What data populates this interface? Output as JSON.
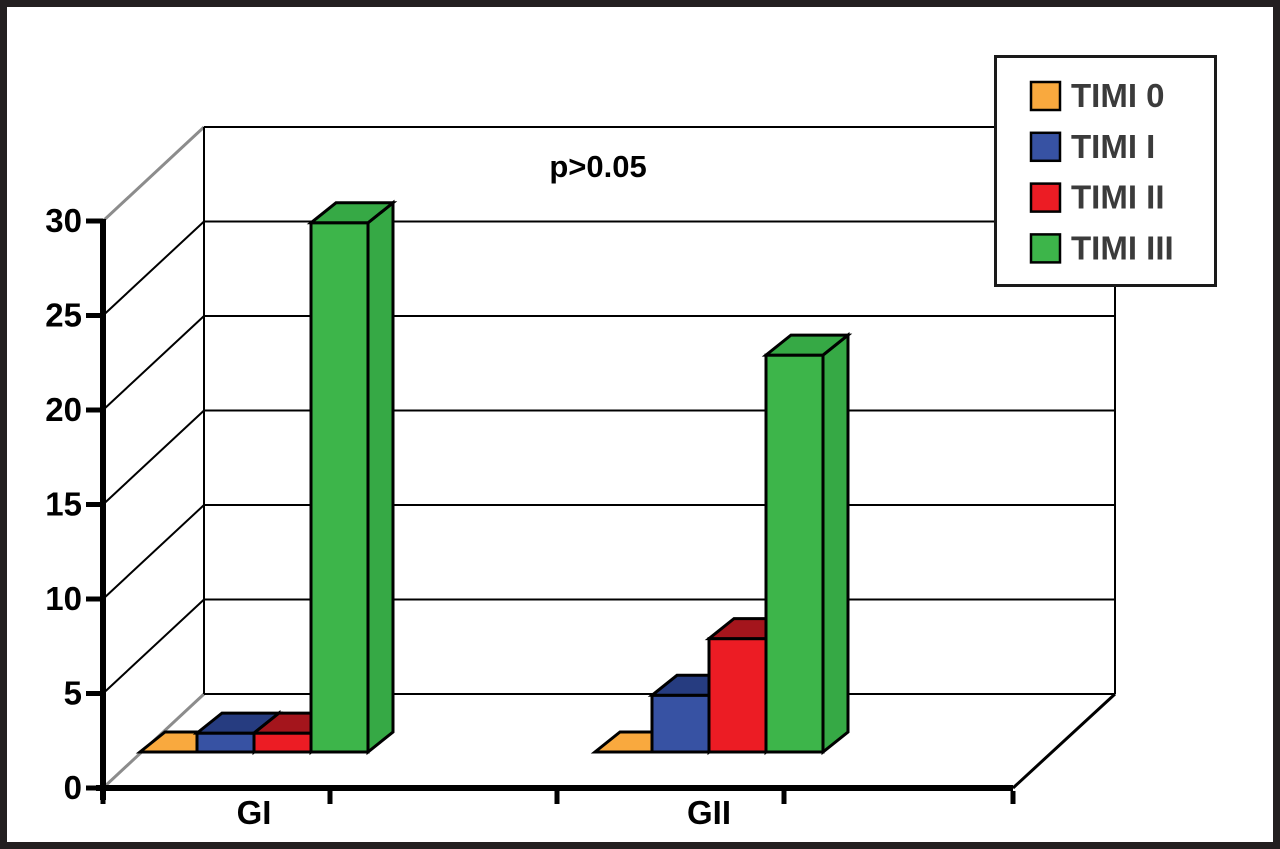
{
  "frame": {
    "border_color": "#231F20",
    "background": "#FFFFFF"
  },
  "chart_data": {
    "type": "bar",
    "projection": "3d",
    "title": "",
    "annotation": "p>0.05",
    "categories": [
      "GI",
      "GII"
    ],
    "series": [
      {
        "name": "TIMI 0",
        "color": "#F9A93E",
        "top_color": "#F9A93E",
        "values": [
          0,
          0
        ]
      },
      {
        "name": "TIMI I",
        "color": "#3752A3",
        "top_color": "#263C80",
        "values": [
          1,
          3
        ]
      },
      {
        "name": "TIMI II",
        "color": "#EC1C24",
        "top_color": "#A4151C",
        "values": [
          1,
          6
        ]
      },
      {
        "name": "TIMI III",
        "color": "#3DB54A",
        "top_color": "#36A945",
        "values": [
          28,
          21
        ]
      }
    ],
    "y_axis": {
      "min": 0,
      "max": 30,
      "step": 5,
      "tick_labels": [
        "0",
        "5",
        "10",
        "15",
        "20",
        "25",
        "30"
      ]
    },
    "x_axis": {
      "labels": [
        "GI",
        "GII"
      ]
    },
    "legend": {
      "position": "top-right"
    },
    "grid": true,
    "gridline_color": "#000000",
    "wall_edge_color": "#8C8C8C",
    "axis_color": "#000000",
    "legend_text_color": "#3B3B3B"
  }
}
